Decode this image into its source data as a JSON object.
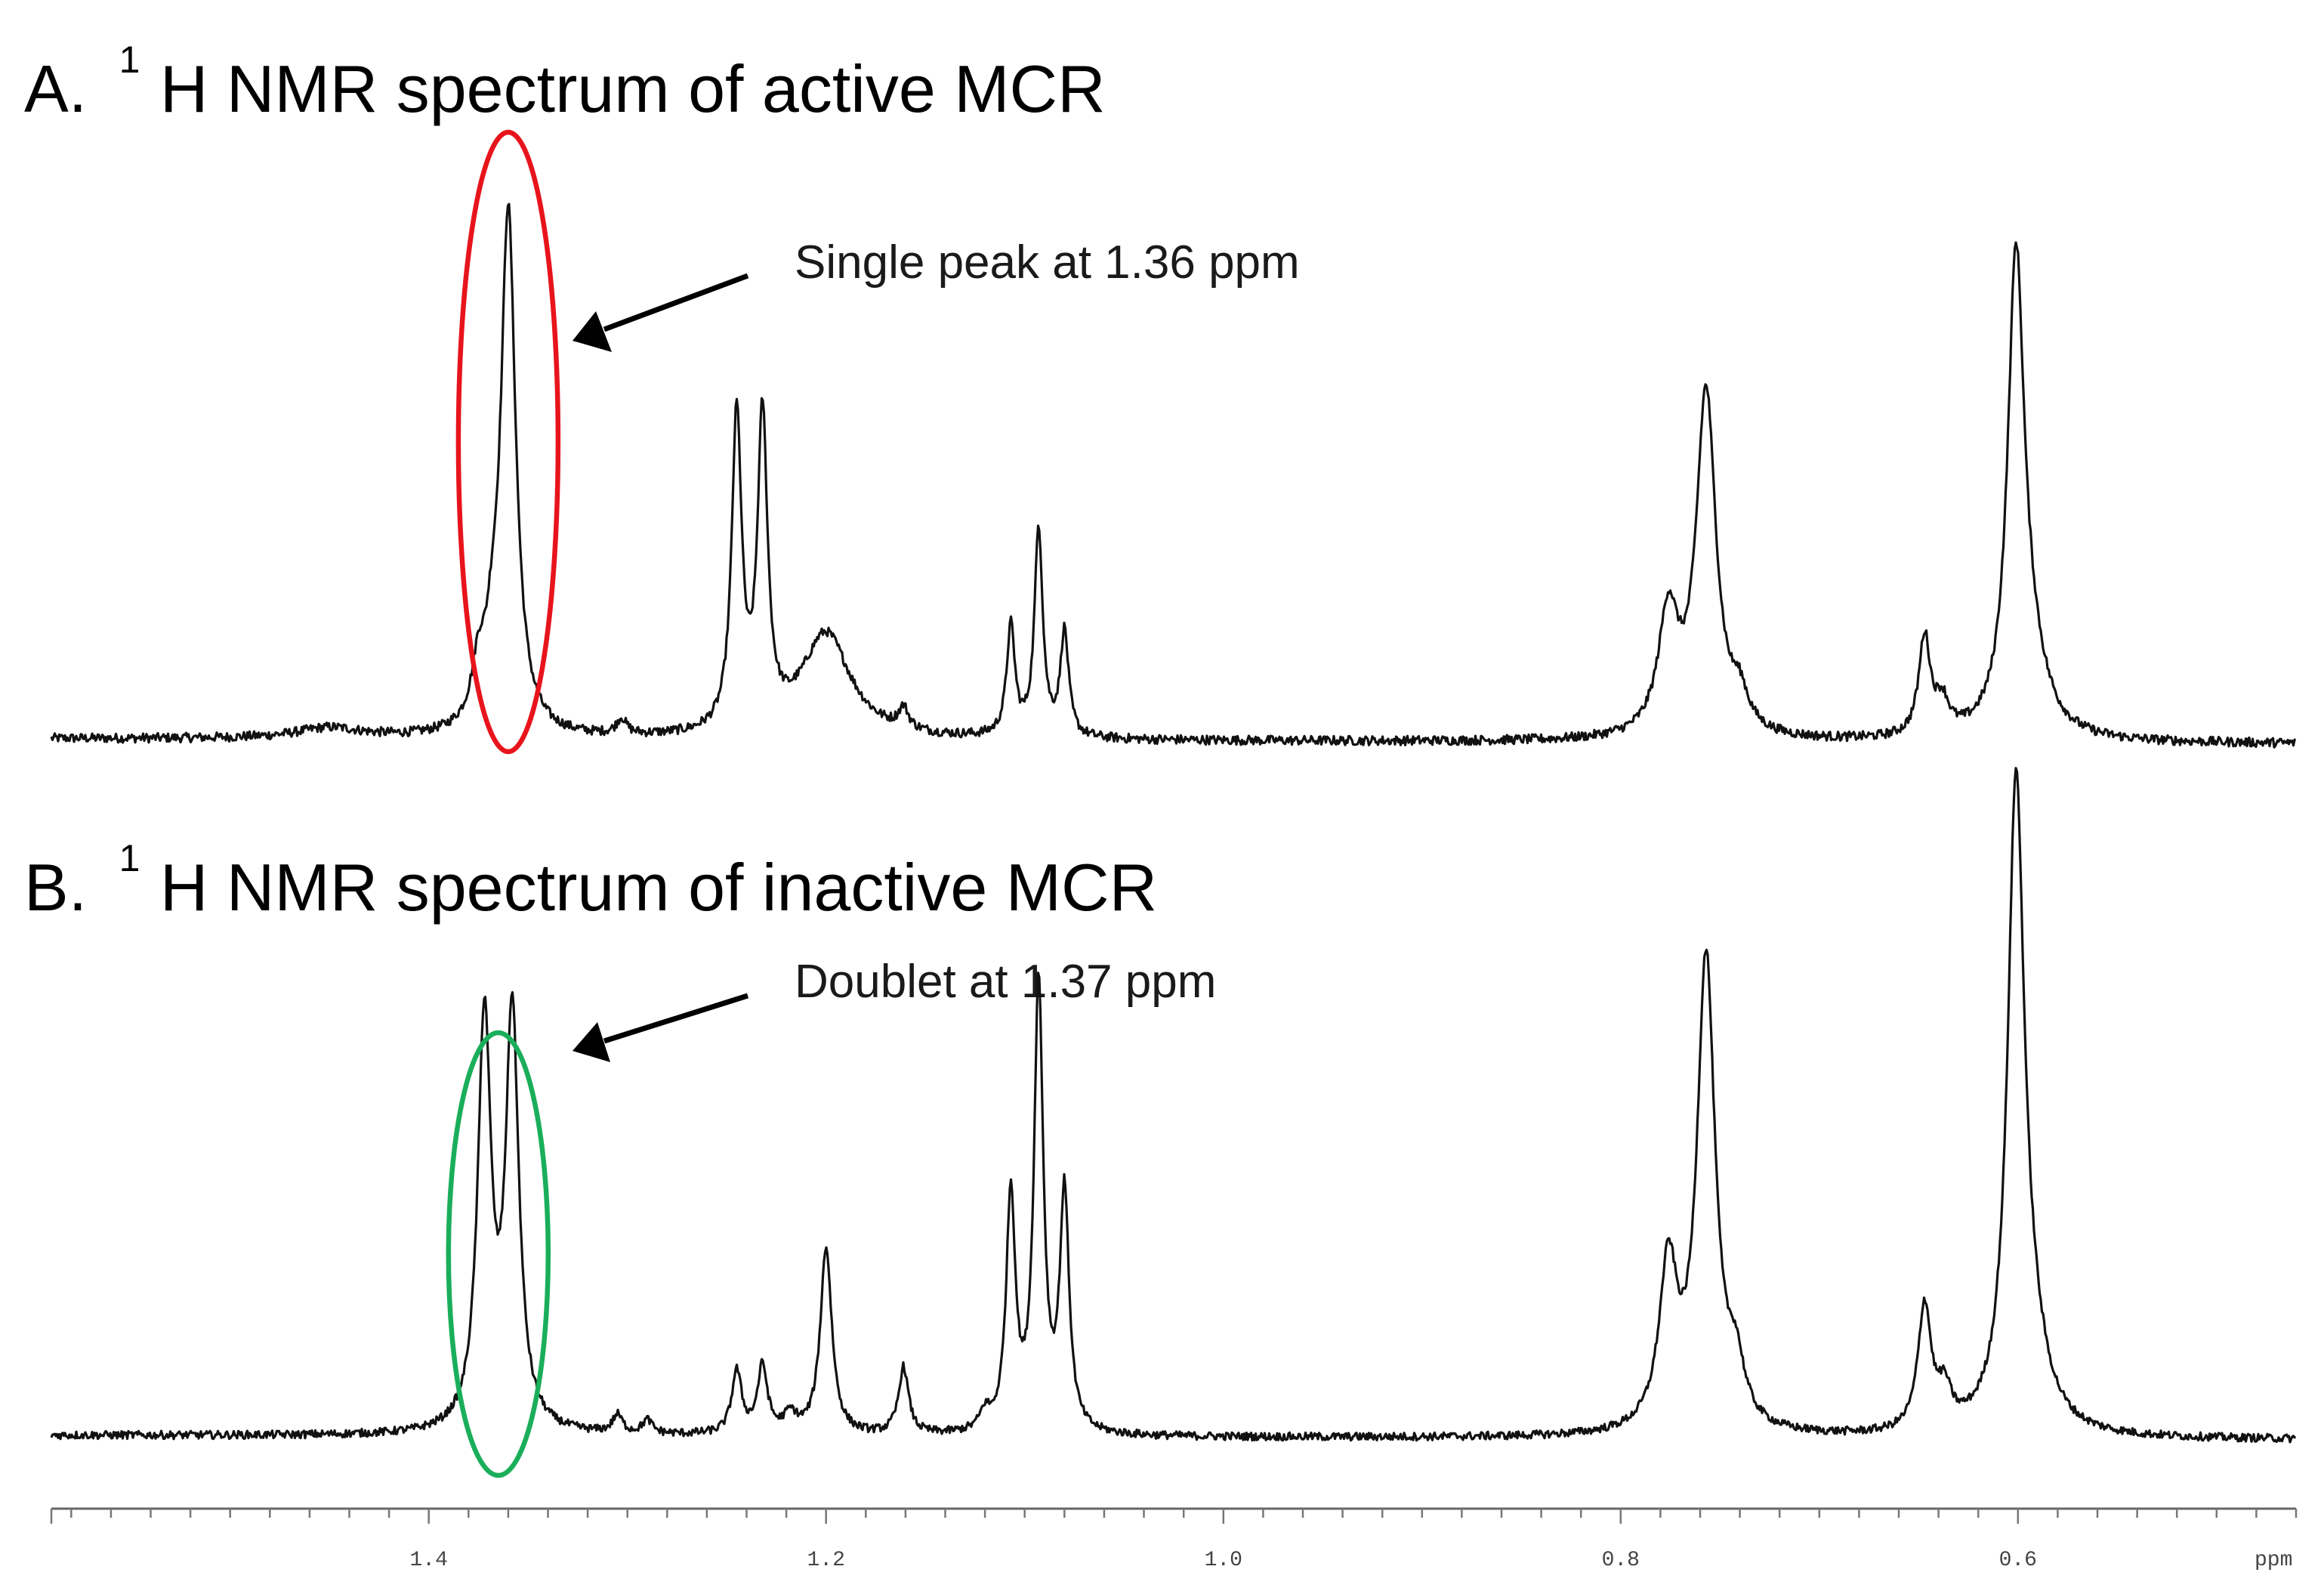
{
  "chart_data": {
    "type": "line",
    "xlabel": "ppm",
    "x_reversed": true,
    "xlim": [
      1.59,
      0.46
    ],
    "x_ticks": [
      1.4,
      1.2,
      1.0,
      0.8,
      0.6
    ],
    "x_tick_labels": [
      "1.4",
      "1.2",
      "1.0",
      "0.8",
      "0.6"
    ],
    "colors": {
      "spectrum": "#111111",
      "active_highlight": "#e8141c",
      "inactive_highlight": "#1aae5a"
    },
    "panels": [
      {
        "id": "A",
        "title_prefix": "A.",
        "title_sup": "1",
        "title_main": "H NMR spectrum of active MCR",
        "annotation": "Single peak at 1.36 ppm",
        "highlight": {
          "center_ppm": 1.36,
          "color": "active_highlight"
        },
        "peaks": [
          {
            "ppm": 1.36,
            "height": 1.0,
            "width": 0.0045
          },
          {
            "ppm": 1.375,
            "height": 0.1,
            "width": 0.004
          },
          {
            "ppm": 1.368,
            "height": 0.1,
            "width": 0.004
          },
          {
            "ppm": 1.245,
            "height": 0.6,
            "width": 0.003
          },
          {
            "ppm": 1.232,
            "height": 0.59,
            "width": 0.003
          },
          {
            "ppm": 1.2,
            "height": 0.2,
            "width": 0.015
          },
          {
            "ppm": 1.161,
            "height": 0.04,
            "width": 0.003
          },
          {
            "ppm": 1.107,
            "height": 0.21,
            "width": 0.0025
          },
          {
            "ppm": 1.093,
            "height": 0.4,
            "width": 0.0025
          },
          {
            "ppm": 1.08,
            "height": 0.2,
            "width": 0.0025
          },
          {
            "ppm": 1.303,
            "height": 0.03,
            "width": 0.003
          },
          {
            "ppm": 0.776,
            "height": 0.23,
            "width": 0.006
          },
          {
            "ppm": 0.757,
            "height": 0.66,
            "width": 0.006
          },
          {
            "ppm": 0.74,
            "height": 0.06,
            "width": 0.005
          },
          {
            "ppm": 0.647,
            "height": 0.19,
            "width": 0.0035
          },
          {
            "ppm": 0.638,
            "height": 0.06,
            "width": 0.004
          },
          {
            "ppm": 0.601,
            "height": 0.88,
            "width": 0.005
          },
          {
            "ppm": 0.594,
            "height": 0.12,
            "width": 0.01
          },
          {
            "ppm": 1.45,
            "height": 0.02,
            "width": 0.02
          }
        ]
      },
      {
        "id": "B",
        "title_prefix": "B.",
        "title_sup": "1",
        "title_main": "H NMR spectrum of inactive MCR",
        "annotation": "Doublet at 1.37 ppm",
        "highlight": {
          "center_ppm": 1.365,
          "color": "inactive_highlight"
        },
        "peaks": [
          {
            "ppm": 1.372,
            "height": 0.92,
            "width": 0.004
          },
          {
            "ppm": 1.358,
            "height": 0.93,
            "width": 0.004
          },
          {
            "ppm": 1.305,
            "height": 0.04,
            "width": 0.003
          },
          {
            "ppm": 1.29,
            "height": 0.03,
            "width": 0.003
          },
          {
            "ppm": 1.245,
            "height": 0.14,
            "width": 0.003
          },
          {
            "ppm": 1.232,
            "height": 0.15,
            "width": 0.003
          },
          {
            "ppm": 1.218,
            "height": 0.04,
            "width": 0.004
          },
          {
            "ppm": 1.2,
            "height": 0.42,
            "width": 0.0035
          },
          {
            "ppm": 1.161,
            "height": 0.15,
            "width": 0.003
          },
          {
            "ppm": 1.12,
            "height": 0.04,
            "width": 0.003
          },
          {
            "ppm": 1.107,
            "height": 0.53,
            "width": 0.0028
          },
          {
            "ppm": 1.093,
            "height": 1.0,
            "width": 0.0028
          },
          {
            "ppm": 1.08,
            "height": 0.53,
            "width": 0.0028
          },
          {
            "ppm": 0.776,
            "height": 0.36,
            "width": 0.0055
          },
          {
            "ppm": 0.757,
            "height": 1.06,
            "width": 0.0055
          },
          {
            "ppm": 0.742,
            "height": 0.12,
            "width": 0.005
          },
          {
            "ppm": 0.647,
            "height": 0.28,
            "width": 0.004
          },
          {
            "ppm": 0.637,
            "height": 0.08,
            "width": 0.004
          },
          {
            "ppm": 0.601,
            "height": 1.4,
            "width": 0.005
          },
          {
            "ppm": 0.594,
            "height": 0.15,
            "width": 0.01
          }
        ]
      }
    ]
  }
}
